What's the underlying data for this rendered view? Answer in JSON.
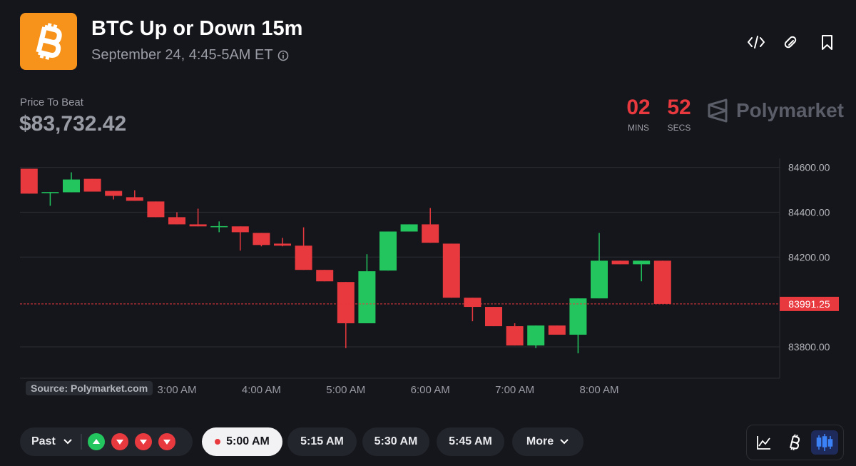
{
  "header": {
    "title": "BTC Up or Down 15m",
    "subtitle": "September 24, 4:45-5AM ET"
  },
  "price_to_beat": {
    "label": "Price To Beat",
    "value": "$83,732.42"
  },
  "countdown": {
    "minutes": "02",
    "minutes_label": "MINS",
    "seconds": "52",
    "seconds_label": "SECS"
  },
  "brand": "Polymarket",
  "chart_data": {
    "type": "candlestick",
    "source": "Source: Polymarket.com",
    "categories": [
      null,
      null,
      null,
      null,
      null,
      null,
      null,
      "3:00 AM",
      null,
      null,
      null,
      "4:00 AM",
      null,
      null,
      null,
      "5:00 AM",
      null,
      null,
      null,
      "6:00 AM",
      null,
      null,
      null,
      "7:00 AM",
      null,
      null,
      null,
      "8:00 AM",
      null,
      null,
      null
    ],
    "open": [
      84594,
      84489,
      84489,
      84549,
      84495,
      84467,
      84448,
      84378,
      84346,
      84337,
      84337,
      84308,
      84260,
      84251,
      84143,
      84089,
      83905,
      84140,
      84314,
      84346,
      84260,
      84019,
      83978,
      83892,
      83806,
      83895,
      83854,
      84016,
      84184,
      84168,
      84184
    ],
    "high": [
      84594,
      84490,
      84578,
      84549,
      84495,
      84498,
      84448,
      84400,
      84416,
      84359,
      84337,
      84308,
      84286,
      84333,
      84143,
      84089,
      84213,
      84314,
      84346,
      84419,
      84260,
      84019,
      83978,
      83905,
      83895,
      83895,
      84016,
      84308,
      84184,
      84184,
      84184
    ],
    "low": [
      84483,
      84429,
      84489,
      84492,
      84457,
      84451,
      84378,
      84346,
      84337,
      84311,
      84229,
      84248,
      84248,
      84143,
      84092,
      83794,
      83905,
      84140,
      84314,
      84264,
      84019,
      83914,
      83892,
      83806,
      83794,
      83854,
      83771,
      84016,
      84168,
      84092,
      83991.25
    ],
    "close": [
      84483,
      84490,
      84546,
      84492,
      84473,
      84451,
      84378,
      84346,
      84337,
      84338,
      84311,
      84254,
      84251,
      84143,
      84092,
      83905,
      84137,
      84314,
      84346,
      84264,
      84019,
      83978,
      83892,
      83806,
      83895,
      83854,
      84016,
      84184,
      84168,
      84184,
      83991.25
    ],
    "up_color": "#22c55e",
    "down_color": "#e8393f",
    "ylim": [
      83660,
      84640
    ],
    "yticks": [
      {
        "value": 83800,
        "label": "83800.00"
      },
      {
        "value": 84200,
        "label": "84200.00"
      },
      {
        "value": 84400,
        "label": "84400.00"
      },
      {
        "value": 84600,
        "label": "84600.00"
      }
    ],
    "last_price": 83991.25,
    "grid": true
  },
  "controls": {
    "past": "Past",
    "times": [
      "5:00 AM",
      "5:15 AM",
      "5:30 AM",
      "5:45 AM"
    ],
    "more": "More"
  }
}
